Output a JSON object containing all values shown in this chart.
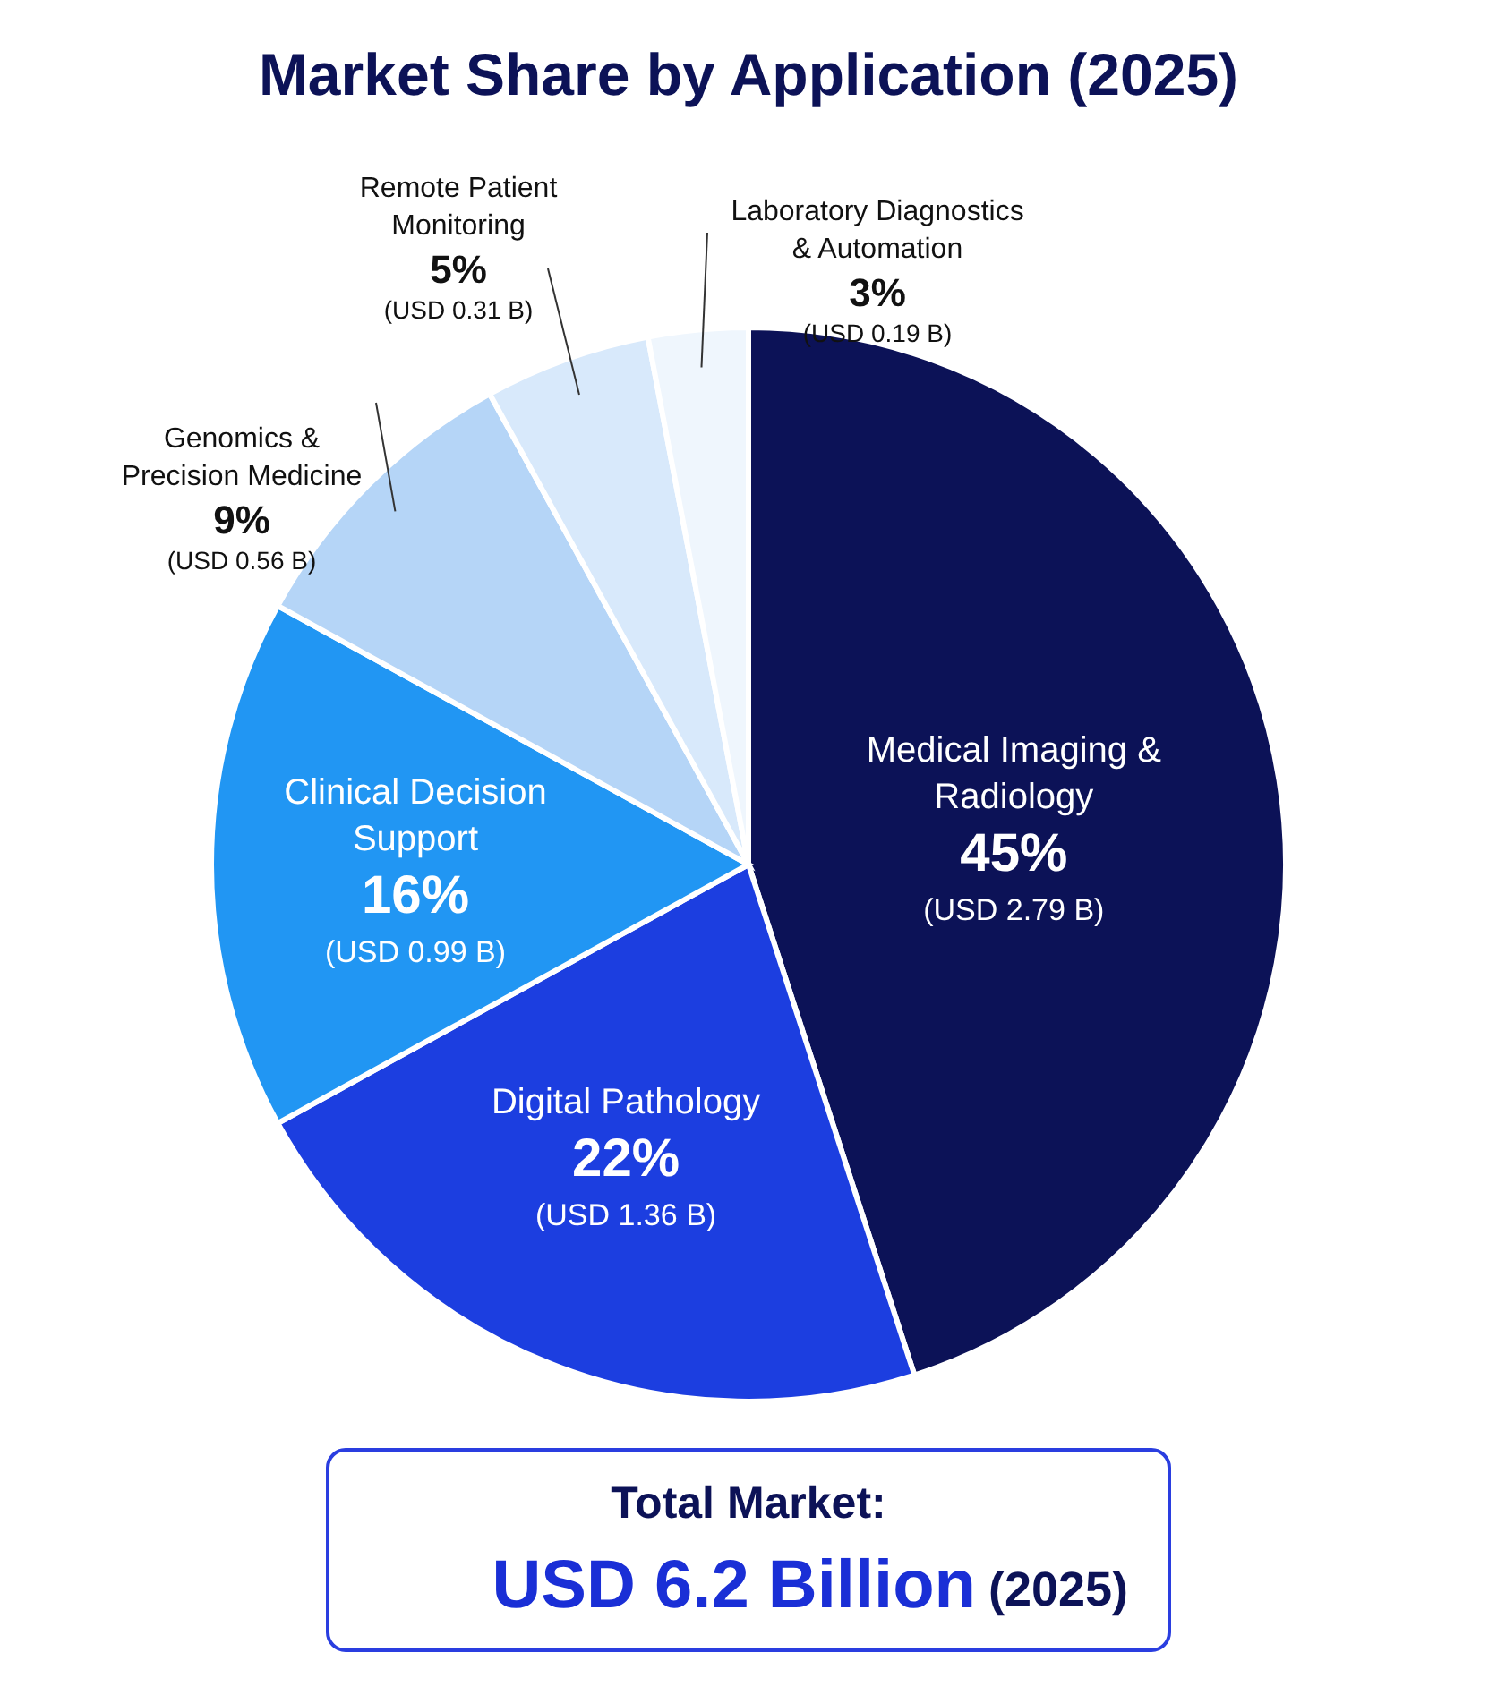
{
  "chart_data": {
    "type": "pie",
    "title": "Market Share by Application (2025)",
    "categories": [
      "Medical Imaging & Radiology",
      "Digital Pathology",
      "Clinical Decision Support",
      "Genomics & Precision Medicine",
      "Remote Patient Monitoring",
      "Laboratory Diagnostics & Automation"
    ],
    "values": [
      45,
      22,
      16,
      9,
      5,
      3
    ],
    "colors": [
      "#0c1257",
      "#1c3ee0",
      "#2196f3",
      "#b5d5f7",
      "#d8e9fb",
      "#eff6fd"
    ],
    "value_labels": [
      "45%",
      "22%",
      "16%",
      "9%",
      "5%",
      "3%"
    ],
    "annotations": [
      "(USD 2.79 B)",
      "(USD 1.36 B)",
      "(USD 0.99 B)",
      "(USD 0.56 B)",
      "(USD 0.31 B)",
      "(USD 0.19 B)",
      "Total Market:",
      "USD 6.2 Billion",
      "(2025)"
    ]
  }
}
